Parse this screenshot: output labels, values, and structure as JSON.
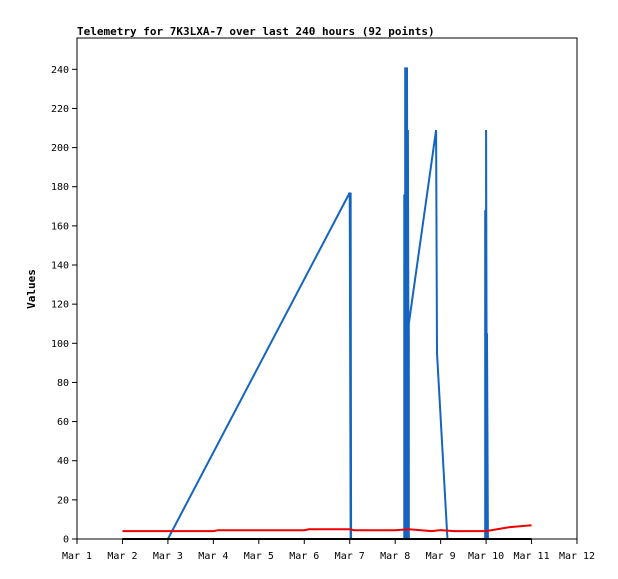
{
  "chart_data": {
    "type": "line",
    "title": "Telemetry for 7K3LXA-7 over last 240 hours (92 points)",
    "xlabel": "",
    "ylabel": "Values",
    "x_ticks": [
      "Mar 1",
      "Mar 2",
      "Mar 3",
      "Mar 4",
      "Mar 5",
      "Mar 6",
      "Mar 7",
      "Mar 8",
      "Mar 9",
      "Mar 10",
      "Mar 11",
      "Mar 12"
    ],
    "xlim": [
      1,
      12
    ],
    "ylim": [
      0,
      256
    ],
    "y_ticks": [
      0,
      20,
      40,
      60,
      80,
      100,
      120,
      140,
      160,
      180,
      200,
      220,
      240
    ],
    "grid": false,
    "legend": "none",
    "colors": {
      "series1": "#1565c0",
      "series2": "#ee0000",
      "series3": "#000000"
    },
    "series": [
      {
        "points": [
          [
            3.0,
            0
          ],
          [
            7.0,
            177
          ],
          [
            7.02,
            0
          ],
          [
            7.02,
            177
          ],
          [
            7.03,
            0
          ],
          [
            8.2,
            0
          ],
          [
            8.2,
            176
          ],
          [
            8.22,
            0
          ],
          [
            8.22,
            241
          ],
          [
            8.24,
            0
          ],
          [
            8.24,
            241
          ],
          [
            8.26,
            0
          ],
          [
            8.26,
            241
          ],
          [
            8.28,
            0
          ],
          [
            8.28,
            209
          ],
          [
            8.3,
            0
          ],
          [
            8.3,
            110
          ],
          [
            8.9,
            209
          ],
          [
            8.92,
            95
          ],
          [
            9.15,
            0
          ],
          [
            9.98,
            0
          ],
          [
            9.98,
            168
          ],
          [
            10.0,
            0
          ],
          [
            10.0,
            209
          ],
          [
            10.02,
            0
          ],
          [
            10.02,
            105
          ],
          [
            10.04,
            0
          ]
        ]
      },
      {
        "points": [
          [
            2.0,
            4
          ],
          [
            3.0,
            4
          ],
          [
            4.0,
            4
          ],
          [
            4.1,
            4.5
          ],
          [
            5.0,
            4.5
          ],
          [
            6.0,
            4.5
          ],
          [
            6.1,
            5
          ],
          [
            7.0,
            5
          ],
          [
            7.1,
            4.5
          ],
          [
            8.0,
            4.5
          ],
          [
            8.3,
            5
          ],
          [
            8.8,
            4
          ],
          [
            9.0,
            4.5
          ],
          [
            9.3,
            4
          ],
          [
            10.0,
            4
          ],
          [
            10.5,
            6
          ],
          [
            11.0,
            7
          ]
        ]
      },
      {
        "points": [
          [
            2.0,
            0
          ],
          [
            11.0,
            0
          ]
        ]
      }
    ]
  }
}
